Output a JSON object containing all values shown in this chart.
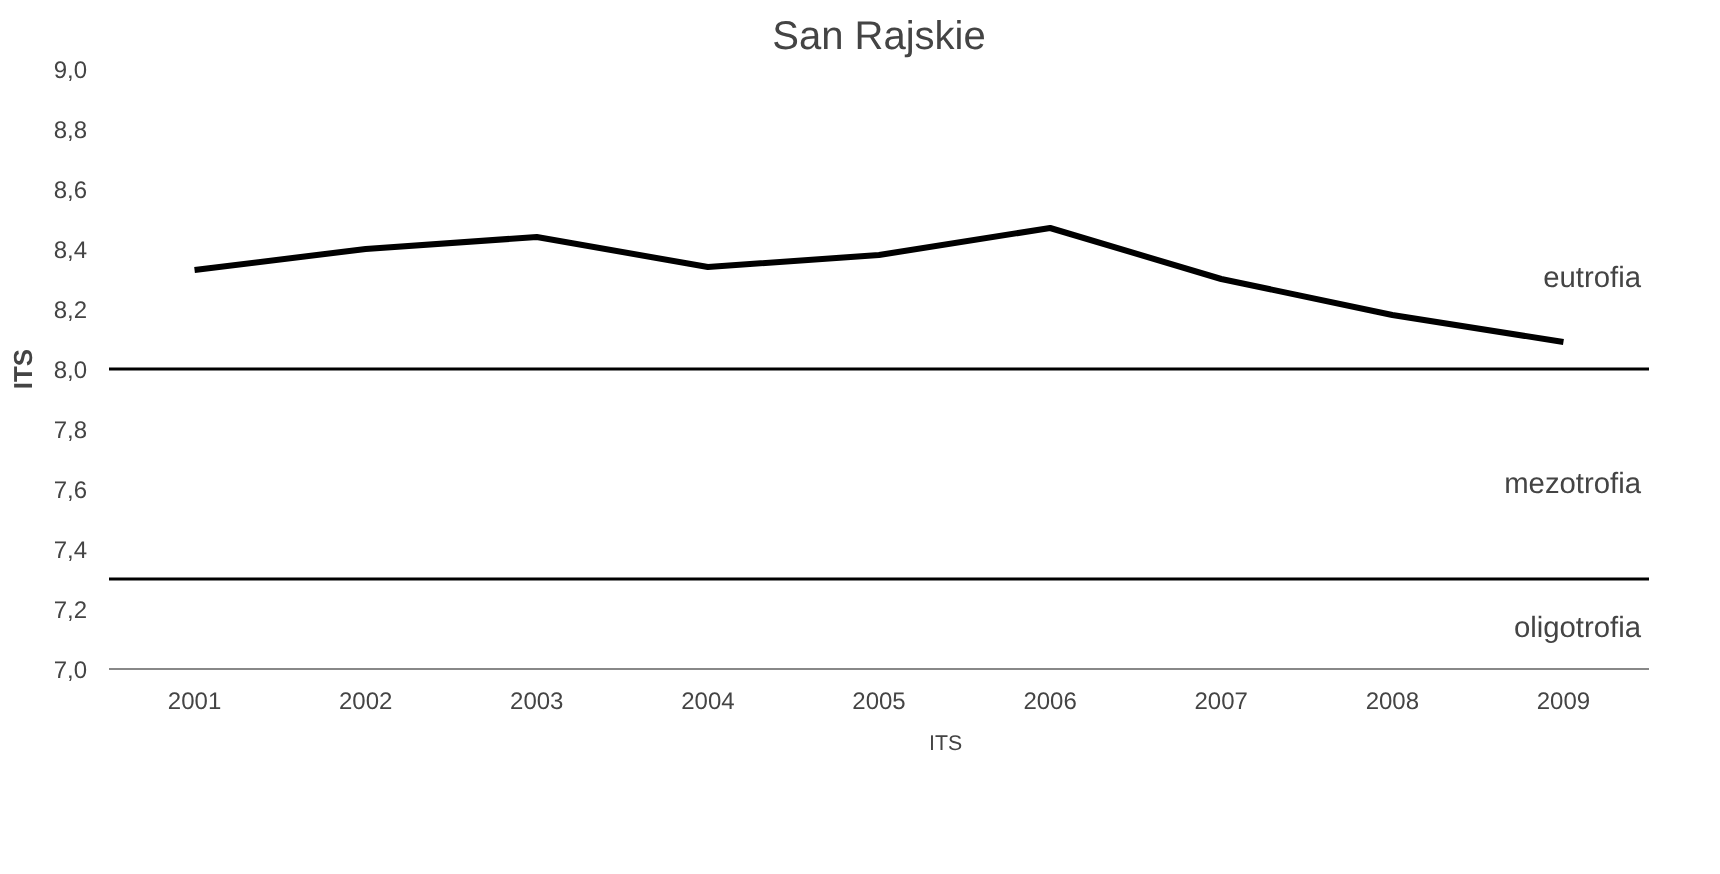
{
  "chart_data": {
    "type": "line",
    "title": "San Rajskie",
    "ylabel": "ITS",
    "categories": [
      "2001",
      "2002",
      "2003",
      "2004",
      "2005",
      "2006",
      "2007",
      "2008",
      "2009"
    ],
    "series": [
      {
        "name": "ITS",
        "color": "#000000",
        "values": [
          8.33,
          8.4,
          8.44,
          8.34,
          8.38,
          8.47,
          8.3,
          8.18,
          8.09
        ]
      }
    ],
    "ylim": [
      7.0,
      9.0
    ],
    "yticks": [
      {
        "value": 7.0,
        "label": "7,0"
      },
      {
        "value": 7.2,
        "label": "7,2"
      },
      {
        "value": 7.4,
        "label": "7,4"
      },
      {
        "value": 7.6,
        "label": "7,6"
      },
      {
        "value": 7.8,
        "label": "7,8"
      },
      {
        "value": 8.0,
        "label": "8,0"
      },
      {
        "value": 8.2,
        "label": "8,2"
      },
      {
        "value": 8.4,
        "label": "8,4"
      },
      {
        "value": 8.6,
        "label": "8,6"
      },
      {
        "value": 8.8,
        "label": "8,8"
      },
      {
        "value": 9.0,
        "label": "9,0"
      }
    ],
    "ref_lines": [
      {
        "axis": "y",
        "value": 8.0
      },
      {
        "axis": "y",
        "value": 7.3
      }
    ],
    "annotations": [
      "eutrofia",
      "mezotrofia",
      "oligotrofia"
    ],
    "grid": false,
    "legend": "bottom",
    "marker": "none",
    "line_style": "solid"
  }
}
